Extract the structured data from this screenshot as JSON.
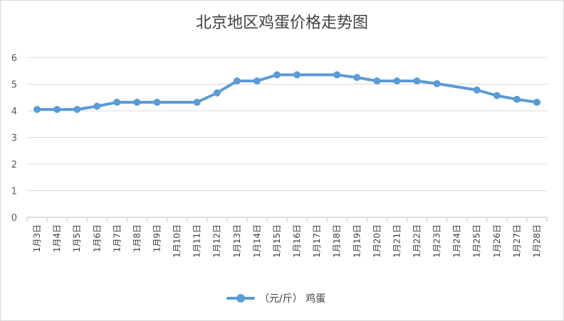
{
  "chart_data": {
    "type": "line",
    "title": "北京地区鸡蛋价格走势图",
    "categories": [
      "1月3日",
      "1月4日",
      "1月5日",
      "1月6日",
      "1月7日",
      "1月8日",
      "1月9日",
      "1月10日",
      "1月11日",
      "1月12日",
      "1月13日",
      "1月14日",
      "1月15日",
      "1月16日",
      "1月17日",
      "1月18日",
      "1月19日",
      "1月20日",
      "1月21日",
      "1月22日",
      "1月23日",
      "1月24日",
      "1月25日",
      "1月26日",
      "1月27日",
      "1月28日"
    ],
    "series": [
      {
        "name": "（元/斤） 鸡蛋",
        "color": "#5b9bd5",
        "values": [
          4.05,
          4.05,
          4.05,
          4.17,
          4.32,
          4.32,
          4.32,
          null,
          4.32,
          4.67,
          5.12,
          5.12,
          5.35,
          5.35,
          null,
          5.35,
          5.25,
          5.12,
          5.12,
          5.12,
          5.02,
          null,
          4.78,
          4.57,
          4.43,
          4.32
        ],
        "gap_mode": "connect"
      }
    ],
    "ylim": [
      0,
      6
    ],
    "yticks": [
      0,
      1,
      2,
      3,
      4,
      5,
      6
    ],
    "grid": true,
    "legend": "bottom"
  }
}
